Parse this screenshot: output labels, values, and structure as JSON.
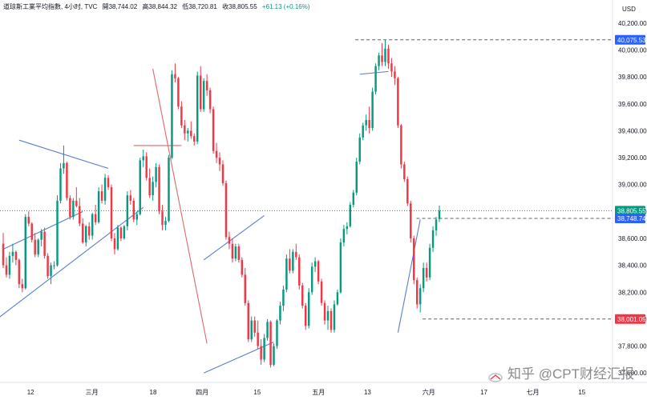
{
  "header": {
    "symbol": "道琼斯工業平均指數, 4小时, TVC",
    "open": "開38,744.02",
    "high": "高38,844.32",
    "low": "低38,720.81",
    "close": "收38,805.55",
    "change": "+61.13 (+0.16%)"
  },
  "watermark": "知乎 @CPT财经汇报",
  "colors": {
    "up": "#089981",
    "down": "#f23645",
    "trend": "#5b7ccf",
    "red_line": "#e06666",
    "badge_blue": "#2962ff",
    "badge_green": "#089981",
    "badge_red": "#f23645"
  },
  "chart_data": {
    "type": "candlestick",
    "currency_label": "USD",
    "ylim": [
      37530,
      40300
    ],
    "y_ticks": [
      37600,
      37800,
      38000,
      38200,
      38400,
      38600,
      38800,
      39000,
      39200,
      39400,
      39600,
      39800,
      40000,
      40200
    ],
    "y_tick_labels": [
      "37,600.00",
      "37,800.00",
      "38,000.00",
      "38,200.00",
      "38,400.00",
      "38,600.00",
      "38,800.00",
      "39,000.00",
      "39,200.00",
      "39,400.00",
      "39,600.00",
      "39,800.00",
      "40,000.00",
      "40,200.00"
    ],
    "x_ticks": [
      "12",
      "三月",
      "18",
      "四月",
      "15",
      "五月",
      "13",
      "六月",
      "17",
      "七月",
      "15"
    ],
    "x_tick_positions": [
      0.05,
      0.15,
      0.25,
      0.33,
      0.42,
      0.52,
      0.6,
      0.7,
      0.79,
      0.87,
      0.95
    ],
    "price_badges": [
      {
        "label": "40,075.53",
        "value": 40075.53,
        "style": "blue"
      },
      {
        "label": "38,805.55",
        "value": 38805.55,
        "style": "green"
      },
      {
        "label": "38,748.74",
        "value": 38748.74,
        "style": "blue"
      },
      {
        "label": "38,001.05",
        "value": 38001.05,
        "style": "red"
      }
    ],
    "horizontal_lines": [
      {
        "value": 40075.53,
        "style": "dashed",
        "from": 0.58
      },
      {
        "value": 38805.55,
        "style": "dotted-green",
        "from": 0
      },
      {
        "value": 38748.74,
        "style": "dashed",
        "from": 0.68
      },
      {
        "value": 38001.05,
        "style": "dashed",
        "from": 0.69
      }
    ],
    "candles": [
      [
        38560,
        38640,
        38380,
        38400
      ],
      [
        38400,
        38460,
        38310,
        38330
      ],
      [
        38330,
        38500,
        38300,
        38470
      ],
      [
        38470,
        38560,
        38420,
        38500
      ],
      [
        38500,
        38510,
        38400,
        38440
      ],
      [
        38440,
        38450,
        38230,
        38260
      ],
      [
        38260,
        38300,
        38200,
        38230
      ],
      [
        38230,
        38780,
        38220,
        38760
      ],
      [
        38760,
        38800,
        38690,
        38710
      ],
      [
        38710,
        38720,
        38570,
        38590
      ],
      [
        38590,
        38640,
        38460,
        38480
      ],
      [
        38480,
        38600,
        38460,
        38590
      ],
      [
        38590,
        38670,
        38540,
        38650
      ],
      [
        38650,
        38680,
        38450,
        38470
      ],
      [
        38470,
        38490,
        38300,
        38320
      ],
      [
        38320,
        38420,
        38260,
        38400
      ],
      [
        38400,
        38430,
        38370,
        38400
      ],
      [
        38400,
        38920,
        38390,
        38880
      ],
      [
        38880,
        39160,
        38860,
        39120
      ],
      [
        39120,
        39290,
        39080,
        39160
      ],
      [
        39160,
        39170,
        38880,
        38900
      ],
      [
        38900,
        38920,
        38740,
        38760
      ],
      [
        38760,
        38900,
        38740,
        38880
      ],
      [
        38880,
        38980,
        38830,
        38840
      ],
      [
        38840,
        38900,
        38690,
        38710
      ],
      [
        38710,
        38750,
        38560,
        38570
      ],
      [
        38570,
        38700,
        38540,
        38690
      ],
      [
        38690,
        38720,
        38590,
        38620
      ],
      [
        38620,
        38790,
        38590,
        38780
      ],
      [
        38780,
        38850,
        38700,
        38720
      ],
      [
        38720,
        38980,
        38710,
        38950
      ],
      [
        38950,
        39000,
        38860,
        38880
      ],
      [
        38880,
        39080,
        38850,
        39050
      ],
      [
        39050,
        39070,
        38960,
        38980
      ],
      [
        38980,
        39000,
        38580,
        38600
      ],
      [
        38600,
        38640,
        38480,
        38520
      ],
      [
        38520,
        38700,
        38510,
        38680
      ],
      [
        38680,
        38690,
        38580,
        38600
      ],
      [
        38600,
        38700,
        38590,
        38690
      ],
      [
        38690,
        38950,
        38660,
        38920
      ],
      [
        38920,
        38960,
        38850,
        38880
      ],
      [
        38880,
        38900,
        38720,
        38740
      ],
      [
        38740,
        38800,
        38700,
        38780
      ],
      [
        38780,
        39200,
        38770,
        39180
      ],
      [
        39180,
        39260,
        39130,
        39210
      ],
      [
        39210,
        39240,
        39030,
        39050
      ],
      [
        39050,
        39120,
        38900,
        38920
      ],
      [
        38920,
        39060,
        38880,
        39020
      ],
      [
        39020,
        39160,
        38980,
        39130
      ],
      [
        39130,
        39150,
        38780,
        38800
      ],
      [
        38800,
        38850,
        38660,
        38700
      ],
      [
        38700,
        38760,
        38660,
        38730
      ],
      [
        38730,
        39220,
        38720,
        39200
      ],
      [
        39200,
        39850,
        39190,
        39820
      ],
      [
        39820,
        39900,
        39760,
        39790
      ],
      [
        39790,
        39800,
        39560,
        39580
      ],
      [
        39580,
        39620,
        39420,
        39440
      ],
      [
        39440,
        39480,
        39330,
        39380
      ],
      [
        39380,
        39420,
        39320,
        39400
      ],
      [
        39400,
        39470,
        39340,
        39360
      ],
      [
        39360,
        39380,
        39290,
        39320
      ],
      [
        39320,
        39840,
        39300,
        39810
      ],
      [
        39810,
        39880,
        39540,
        39560
      ],
      [
        39560,
        39790,
        39540,
        39770
      ],
      [
        39770,
        39820,
        39660,
        39700
      ],
      [
        39700,
        39720,
        39530,
        39560
      ],
      [
        39560,
        39580,
        39230,
        39250
      ],
      [
        39250,
        39310,
        39160,
        39200
      ],
      [
        39200,
        39240,
        39100,
        39150
      ],
      [
        39150,
        39180,
        38990,
        39010
      ],
      [
        39010,
        39030,
        38590,
        38610
      ],
      [
        38610,
        38650,
        38520,
        38560
      ],
      [
        38560,
        38600,
        38420,
        38450
      ],
      [
        38450,
        38560,
        38430,
        38540
      ],
      [
        38540,
        38560,
        38420,
        38440
      ],
      [
        38440,
        38460,
        38310,
        38330
      ],
      [
        38330,
        38380,
        38100,
        38120
      ],
      [
        38120,
        38140,
        37830,
        37850
      ],
      [
        37850,
        38020,
        37830,
        37990
      ],
      [
        37990,
        38020,
        37870,
        37900
      ],
      [
        37900,
        37990,
        37780,
        37800
      ],
      [
        37800,
        37850,
        37660,
        37700
      ],
      [
        37700,
        37890,
        37680,
        37860
      ],
      [
        37860,
        38000,
        37840,
        37980
      ],
      [
        37980,
        37990,
        37640,
        37660
      ],
      [
        37660,
        37820,
        37650,
        37800
      ],
      [
        37800,
        38000,
        37780,
        37990
      ],
      [
        37990,
        38130,
        37960,
        38100
      ],
      [
        38100,
        38250,
        38060,
        38220
      ],
      [
        38220,
        38480,
        38200,
        38450
      ],
      [
        38450,
        38520,
        38340,
        38360
      ],
      [
        38360,
        38520,
        38340,
        38500
      ],
      [
        38500,
        38560,
        38440,
        38460
      ],
      [
        38460,
        38480,
        38220,
        38250
      ],
      [
        38250,
        38270,
        38080,
        38100
      ],
      [
        38100,
        38120,
        37920,
        37950
      ],
      [
        37950,
        38230,
        37930,
        38200
      ],
      [
        38200,
        38420,
        38180,
        38390
      ],
      [
        38390,
        38460,
        38350,
        38430
      ],
      [
        38430,
        38440,
        38260,
        38280
      ],
      [
        38280,
        38300,
        38100,
        38120
      ],
      [
        38120,
        38140,
        37960,
        37990
      ],
      [
        37990,
        38100,
        37920,
        38060
      ],
      [
        38060,
        38080,
        37900,
        37920
      ],
      [
        37920,
        38140,
        37900,
        38110
      ],
      [
        38110,
        38220,
        38100,
        38200
      ],
      [
        38200,
        38600,
        38190,
        38570
      ],
      [
        38570,
        38700,
        38540,
        38670
      ],
      [
        38670,
        38720,
        38630,
        38690
      ],
      [
        38690,
        38870,
        38680,
        38850
      ],
      [
        38850,
        38960,
        38830,
        38940
      ],
      [
        38940,
        39200,
        38920,
        39170
      ],
      [
        39170,
        39380,
        39150,
        39350
      ],
      [
        39350,
        39460,
        39330,
        39440
      ],
      [
        39440,
        39520,
        39400,
        39480
      ],
      [
        39480,
        39580,
        39380,
        39420
      ],
      [
        39420,
        39720,
        39400,
        39690
      ],
      [
        39690,
        39900,
        39670,
        39880
      ],
      [
        39880,
        39980,
        39850,
        39960
      ],
      [
        39960,
        40050,
        39880,
        39910
      ],
      [
        39910,
        40075,
        39880,
        40010
      ],
      [
        40010,
        40040,
        39860,
        39900
      ],
      [
        39900,
        39940,
        39800,
        39840
      ],
      [
        39840,
        39880,
        39740,
        39790
      ],
      [
        39790,
        39800,
        39420,
        39440
      ],
      [
        39440,
        39450,
        39120,
        39150
      ],
      [
        39150,
        39170,
        39020,
        39040
      ],
      [
        39040,
        39060,
        38840,
        38860
      ],
      [
        38860,
        38880,
        38570,
        38600
      ],
      [
        38600,
        38620,
        38260,
        38290
      ],
      [
        38290,
        38310,
        38080,
        38110
      ],
      [
        38110,
        38260,
        38050,
        38230
      ],
      [
        38230,
        38420,
        38200,
        38380
      ],
      [
        38380,
        38420,
        38280,
        38310
      ],
      [
        38310,
        38560,
        38290,
        38530
      ],
      [
        38530,
        38690,
        38500,
        38660
      ],
      [
        38660,
        38760,
        38620,
        38740
      ],
      [
        38744.02,
        38844.32,
        38720.81,
        38805.55
      ]
    ],
    "trend_lines": [
      {
        "color": "trend",
        "points": [
          [
            0,
            38520
          ],
          [
            25,
            38800
          ]
        ]
      },
      {
        "color": "trend",
        "points": [
          [
            -2,
            38000
          ],
          [
            44,
            38830
          ]
        ]
      },
      {
        "color": "trend",
        "points": [
          [
            5,
            39330
          ],
          [
            33,
            39120
          ]
        ]
      },
      {
        "color": "trend",
        "points": [
          [
            63,
            37600
          ],
          [
            85,
            37830
          ]
        ]
      },
      {
        "color": "trend",
        "points": [
          [
            63,
            38440
          ],
          [
            82,
            38770
          ]
        ]
      },
      {
        "color": "trend",
        "points": [
          [
            112,
            39820
          ],
          [
            121,
            39840
          ]
        ]
      },
      {
        "color": "trend",
        "points": [
          [
            124,
            37900
          ],
          [
            131,
            38740
          ]
        ]
      },
      {
        "color": "red_line",
        "points": [
          [
            47,
            39860
          ],
          [
            64,
            37820
          ]
        ]
      },
      {
        "color": "red_line",
        "points": [
          [
            41,
            39290
          ],
          [
            56,
            39290
          ]
        ]
      }
    ]
  }
}
